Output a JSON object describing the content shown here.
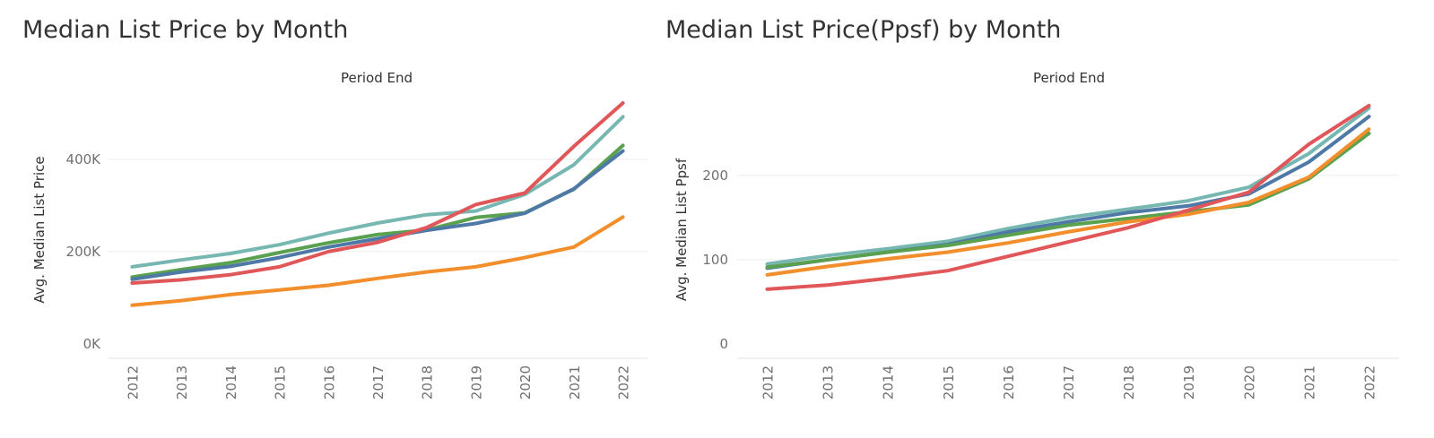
{
  "chart_data": [
    {
      "type": "line",
      "title": "Median List Price by Month",
      "header": "Period End",
      "ylabel": "Avg. Median List Price",
      "xlabel": "",
      "x": [
        "2012",
        "2013",
        "2014",
        "2015",
        "2016",
        "2017",
        "2018",
        "2019",
        "2020",
        "2021",
        "2022"
      ],
      "ylim": [
        0,
        520000
      ],
      "yticks": [
        0,
        200000,
        400000
      ],
      "ytick_labels": [
        "0K",
        "200K",
        "400K"
      ],
      "grid": "horizontal",
      "series": [
        {
          "color": "#76B7B2",
          "values": [
            167000,
            182000,
            196000,
            215000,
            240000,
            262000,
            280000,
            288000,
            324000,
            388000,
            492000
          ]
        },
        {
          "color": "#59A14F",
          "values": [
            145000,
            161000,
            176000,
            198000,
            219000,
            237000,
            247000,
            274000,
            284000,
            335000,
            430000
          ]
        },
        {
          "color": "#4E79A7",
          "values": [
            140000,
            156000,
            168000,
            187000,
            210000,
            228000,
            246000,
            261000,
            283000,
            336000,
            418000
          ]
        },
        {
          "color": "#E15759",
          "values": [
            132000,
            139000,
            150000,
            167000,
            200000,
            220000,
            252000,
            302000,
            327000,
            428000,
            522000
          ]
        },
        {
          "color": "#F28E2B",
          "values": [
            84000,
            94000,
            107000,
            117000,
            127000,
            142000,
            156000,
            167000,
            187000,
            210000,
            275000
          ]
        }
      ]
    },
    {
      "type": "line",
      "title": "Median List Price(Ppsf) by Month",
      "header": "Period End",
      "ylabel": "Avg. Median List Ppsf",
      "xlabel": "",
      "x": [
        "2012",
        "2013",
        "2014",
        "2015",
        "2016",
        "2017",
        "2018",
        "2019",
        "2020",
        "2021",
        "2022"
      ],
      "ylim": [
        0,
        285
      ],
      "yticks": [
        0,
        100,
        200
      ],
      "ytick_labels": [
        "0",
        "100",
        "200"
      ],
      "grid": "horizontal",
      "series": [
        {
          "color": "#76B7B2",
          "values": [
            95,
            105,
            113,
            122,
            137,
            150,
            160,
            170,
            186,
            226,
            280
          ]
        },
        {
          "color": "#4E79A7",
          "values": [
            90,
            100,
            109,
            118,
            133,
            145,
            156,
            164,
            178,
            216,
            270
          ]
        },
        {
          "color": "#59A14F",
          "values": [
            91,
            100,
            109,
            117,
            129,
            141,
            149,
            157,
            165,
            196,
            250
          ]
        },
        {
          "color": "#F28E2B",
          "values": [
            82,
            92,
            101,
            109,
            120,
            133,
            145,
            154,
            168,
            198,
            255
          ]
        },
        {
          "color": "#E15759",
          "values": [
            65,
            70,
            78,
            87,
            104,
            121,
            138,
            159,
            180,
            237,
            283
          ]
        }
      ]
    }
  ]
}
